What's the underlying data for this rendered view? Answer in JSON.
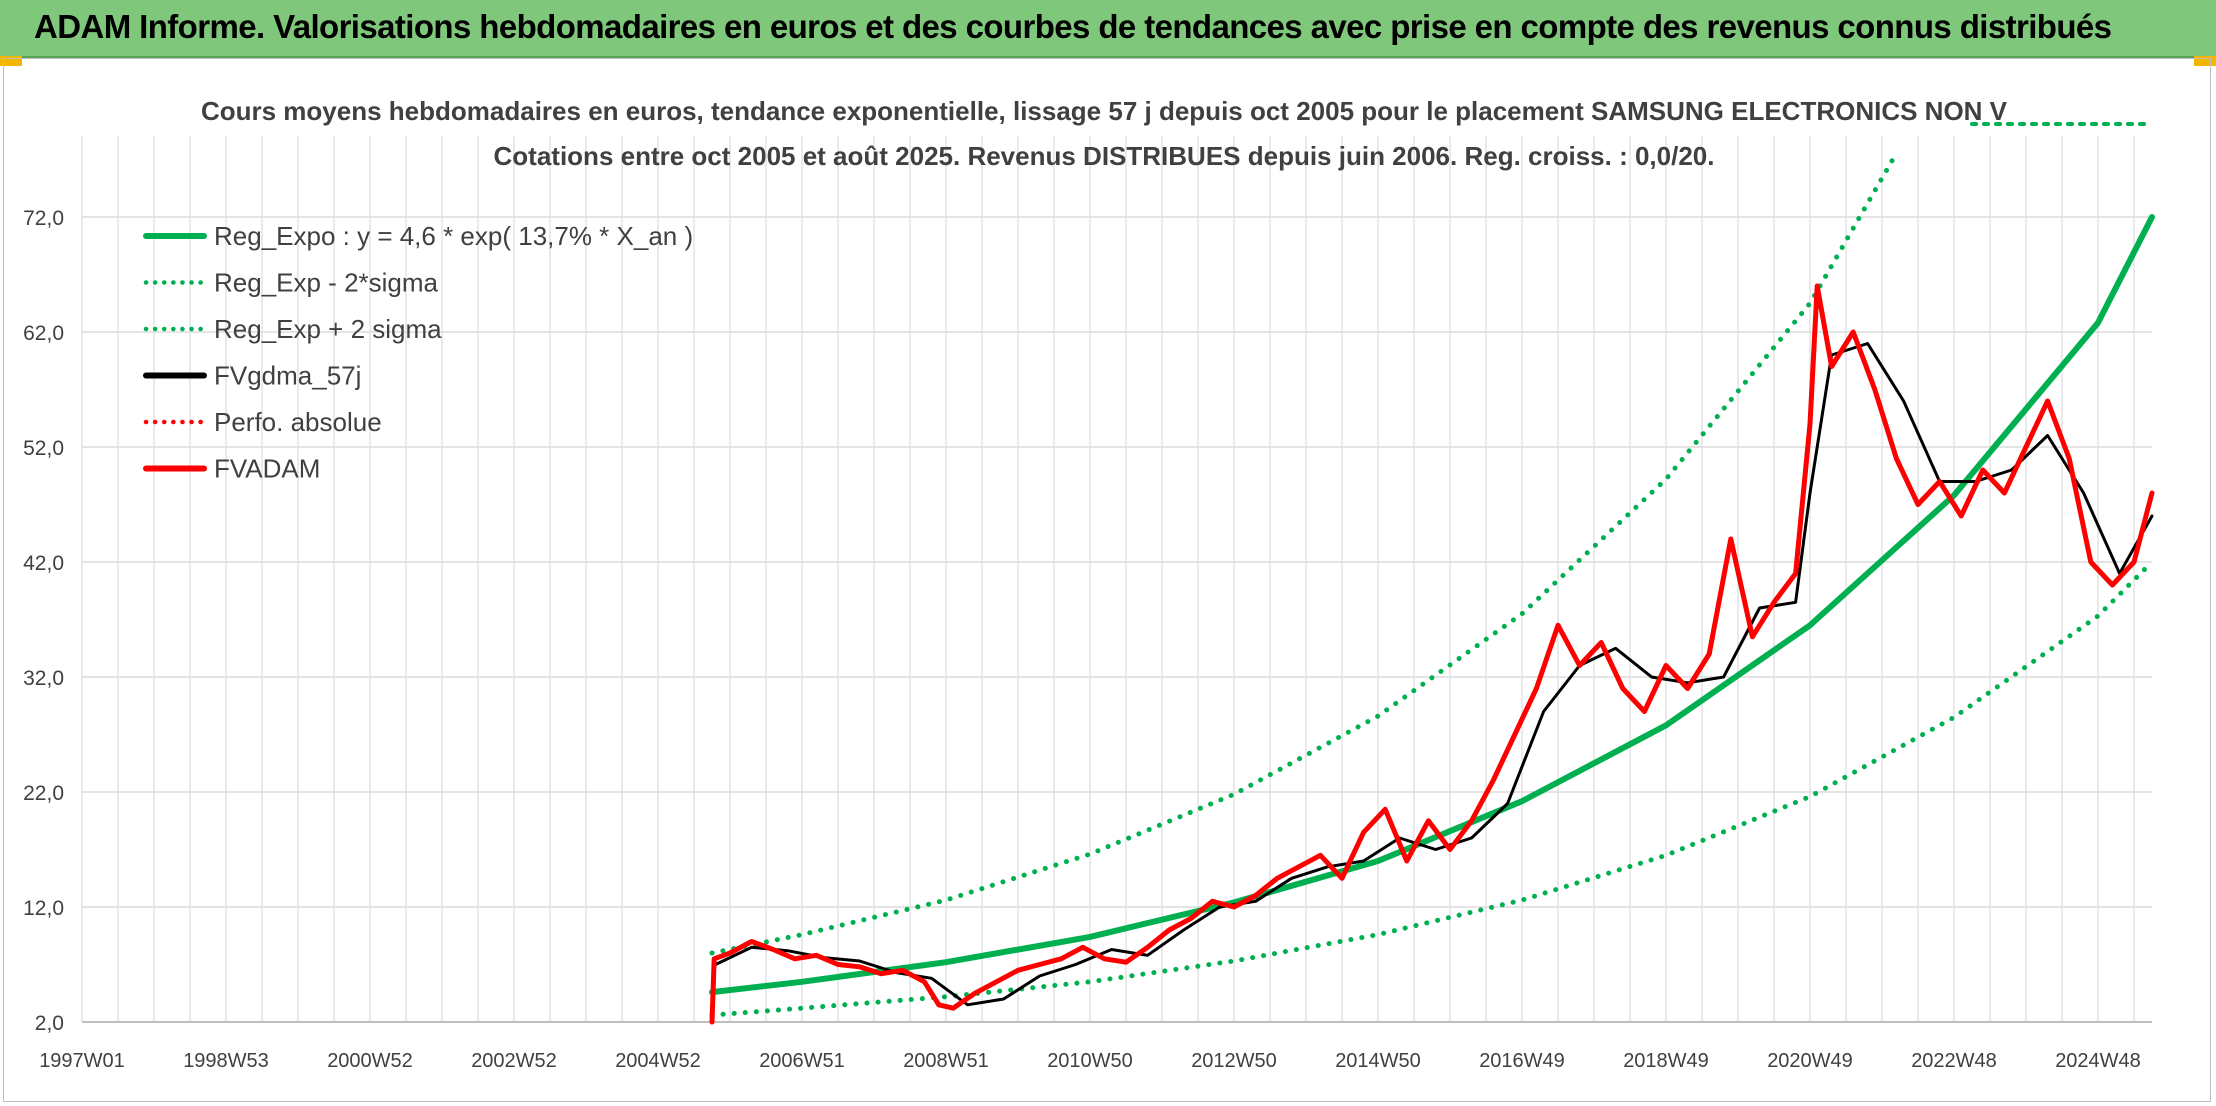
{
  "banner": {
    "title": "ADAM Informe. Valorisations hebdomadaires en euros et des courbes de tendances avec prise en compte des revenus connus distribués"
  },
  "chart_data": {
    "type": "line",
    "title": "Cours moyens hebdomadaires en euros, tendance exponentielle, lissage 57 j depuis oct 2005 pour le placement SAMSUNG ELECTRONICS NON V",
    "subtitle": "Cotations entre oct 2005 et août 2025. Revenus DISTRIBUES depuis juin 2006. Reg. croiss. : 0,0/20.",
    "xlabel": "",
    "ylabel": "",
    "ylim": [
      2,
      79
    ],
    "xlim": [
      1997.0,
      2025.75
    ],
    "y_ticks": [
      "2,0",
      "12,0",
      "22,0",
      "32,0",
      "42,0",
      "52,0",
      "62,0",
      "72,0"
    ],
    "x_ticks": [
      {
        "label": "1997W01",
        "x": 1997.0
      },
      {
        "label": "1998W53",
        "x": 1999.0
      },
      {
        "label": "2000W52",
        "x": 2001.0
      },
      {
        "label": "2002W52",
        "x": 2003.0
      },
      {
        "label": "2004W52",
        "x": 2005.0
      },
      {
        "label": "2006W51",
        "x": 2007.0
      },
      {
        "label": "2008W51",
        "x": 2009.0
      },
      {
        "label": "2010W50",
        "x": 2011.0
      },
      {
        "label": "2012W50",
        "x": 2013.0
      },
      {
        "label": "2014W50",
        "x": 2015.0
      },
      {
        "label": "2016W49",
        "x": 2017.0
      },
      {
        "label": "2018W49",
        "x": 2019.0
      },
      {
        "label": "2020W49",
        "x": 2021.0
      },
      {
        "label": "2022W48",
        "x": 2023.0
      },
      {
        "label": "2024W48",
        "x": 2025.0
      }
    ],
    "grid": true,
    "legend_position": "top-left",
    "legend": [
      {
        "label": "Reg_Expo : y = 4,6 * exp( 13,7% *  X_an )",
        "color": "#00b050",
        "style": "solid"
      },
      {
        "label": "Reg_Exp - 2*sigma",
        "color": "#00b050",
        "style": "dotted"
      },
      {
        "label": "Reg_Exp + 2 sigma",
        "color": "#00b050",
        "style": "dotted"
      },
      {
        "label": "FVgdma_57j",
        "color": "#000000",
        "style": "solid"
      },
      {
        "label": "Perfo. absolue",
        "color": "#ff0000",
        "style": "dotted"
      },
      {
        "label": "FVADAM",
        "color": "#ff0000",
        "style": "solid"
      }
    ],
    "series": [
      {
        "name": "Reg_Expo : y = 4,6 * exp( 13,7% *  X_an )",
        "color": "#00b050",
        "style": "solid",
        "x": [
          2005.75,
          2007,
          2009,
          2011,
          2013,
          2015,
          2017,
          2019,
          2021,
          2023,
          2025,
          2025.75
        ],
        "y": [
          4.6,
          5.5,
          7.2,
          9.4,
          12.4,
          16.0,
          21.2,
          27.8,
          36.5,
          47.8,
          62.8,
          72.0
        ]
      },
      {
        "name": "Reg_Exp - 2*sigma",
        "color": "#00b050",
        "style": "dotted",
        "x": [
          2005.75,
          2007,
          2009,
          2011,
          2013,
          2015,
          2017,
          2019,
          2021,
          2023,
          2025,
          2025.75
        ],
        "y": [
          2.6,
          3.2,
          4.2,
          5.5,
          7.3,
          9.6,
          12.6,
          16.5,
          21.6,
          28.5,
          37.3,
          42.0
        ]
      },
      {
        "name": "Reg_Exp + 2 sigma",
        "color": "#00b050",
        "style": "dotted",
        "x": [
          2005.75,
          2007,
          2009,
          2011,
          2013,
          2015,
          2017,
          2019,
          2021,
          2022.15
        ],
        "y": [
          8.0,
          9.6,
          12.6,
          16.6,
          21.8,
          28.6,
          37.5,
          49.2,
          64.5,
          77.0
        ]
      },
      {
        "name": "FVgdma_57j",
        "color": "#000000",
        "style": "solid",
        "x": [
          2005.8,
          2006.3,
          2006.8,
          2007.3,
          2007.8,
          2008.3,
          2008.8,
          2009.3,
          2009.8,
          2010.3,
          2010.8,
          2011.3,
          2011.8,
          2012.3,
          2012.8,
          2013.3,
          2013.8,
          2014.3,
          2014.8,
          2015.3,
          2015.8,
          2016.3,
          2016.8,
          2017.3,
          2017.8,
          2018.3,
          2018.8,
          2019.3,
          2019.8,
          2020.3,
          2020.8,
          2021.0,
          2021.3,
          2021.8,
          2022.3,
          2022.8,
          2023.3,
          2023.8,
          2024.3,
          2024.8,
          2025.3,
          2025.75
        ],
        "y": [
          7.0,
          8.5,
          8.2,
          7.6,
          7.3,
          6.3,
          5.8,
          3.5,
          4.0,
          6.0,
          7.0,
          8.3,
          7.8,
          10.0,
          12.0,
          12.5,
          14.5,
          15.5,
          16.0,
          18.0,
          17.0,
          18.0,
          21.0,
          29.0,
          33.0,
          34.5,
          32.0,
          31.5,
          32.0,
          38.0,
          38.5,
          48.0,
          60.0,
          61.0,
          56.0,
          49.0,
          49.0,
          50.0,
          53.0,
          48.0,
          41.0,
          46.0
        ]
      },
      {
        "name": "FVADAM",
        "color": "#ff0000",
        "style": "solid",
        "x": [
          2005.75,
          2005.78,
          2006.0,
          2006.3,
          2006.6,
          2006.9,
          2007.2,
          2007.5,
          2007.8,
          2008.1,
          2008.4,
          2008.7,
          2008.9,
          2009.1,
          2009.4,
          2009.7,
          2010.0,
          2010.3,
          2010.6,
          2010.9,
          2011.2,
          2011.5,
          2011.8,
          2012.1,
          2012.4,
          2012.7,
          2013.0,
          2013.3,
          2013.6,
          2013.9,
          2014.2,
          2014.5,
          2014.8,
          2015.1,
          2015.4,
          2015.7,
          2016.0,
          2016.3,
          2016.6,
          2016.9,
          2017.2,
          2017.5,
          2017.8,
          2018.1,
          2018.4,
          2018.7,
          2019.0,
          2019.3,
          2019.6,
          2019.9,
          2020.2,
          2020.5,
          2020.8,
          2021.0,
          2021.1,
          2021.3,
          2021.6,
          2021.9,
          2022.2,
          2022.5,
          2022.8,
          2023.1,
          2023.4,
          2023.7,
          2024.0,
          2024.3,
          2024.6,
          2024.9,
          2025.2,
          2025.5,
          2025.75
        ],
        "y": [
          2.0,
          7.5,
          8.0,
          9.0,
          8.3,
          7.5,
          7.8,
          7.0,
          6.8,
          6.2,
          6.5,
          5.5,
          3.5,
          3.2,
          4.5,
          5.5,
          6.5,
          7.0,
          7.5,
          8.5,
          7.5,
          7.2,
          8.5,
          10.0,
          11.0,
          12.5,
          12.0,
          13.0,
          14.5,
          15.5,
          16.5,
          14.5,
          18.5,
          20.5,
          16.0,
          19.5,
          17.0,
          19.5,
          23.0,
          27.0,
          31.0,
          36.5,
          33.0,
          35.0,
          31.0,
          29.0,
          33.0,
          31.0,
          34.0,
          44.0,
          35.5,
          38.5,
          41.0,
          54.0,
          66.0,
          59.0,
          62.0,
          57.0,
          51.0,
          47.0,
          49.0,
          46.0,
          50.0,
          48.0,
          52.0,
          56.0,
          51.0,
          42.0,
          40.0,
          42.0,
          48.0
        ]
      }
    ]
  }
}
